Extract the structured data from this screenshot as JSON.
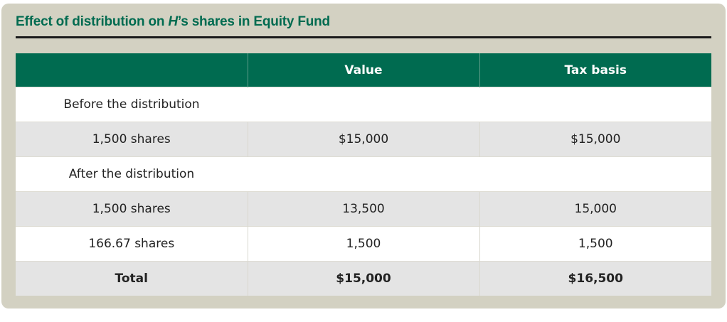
{
  "title": {
    "prefix": "Effect of distribution on ",
    "italic": "H",
    "suffix": "’s shares in Equity Fund"
  },
  "colors": {
    "header": "#006b50",
    "panel": "#d3d1c2",
    "stripe": "#e4e4e4"
  },
  "table": {
    "headers": [
      "",
      "Value",
      "Tax basis"
    ],
    "rows": [
      {
        "label": "Before the distribution",
        "value": "",
        "basis": ""
      },
      {
        "label": "1,500 shares",
        "value": "$15,000",
        "basis": "$15,000"
      },
      {
        "label": "After the distribution",
        "value": "",
        "basis": ""
      },
      {
        "label": "1,500 shares",
        "value": "13,500",
        "basis": "15,000"
      },
      {
        "label": "166.67 shares",
        "value": "1,500",
        "basis": "1,500"
      },
      {
        "label": "Total",
        "value": "$15,000",
        "basis": "$16,500"
      }
    ]
  }
}
